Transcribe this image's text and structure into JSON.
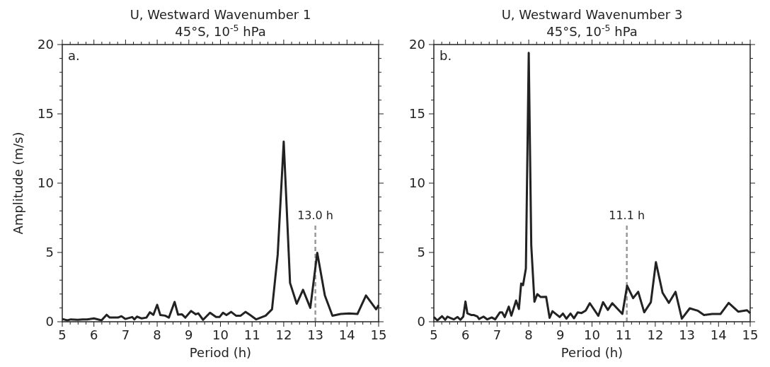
{
  "chart_data": [
    {
      "type": "line",
      "title": "U, Westward Wavenumber 1",
      "subtitle": "45°S, 10$^{-5}$ hPa",
      "xlabel": "Period (h)",
      "ylabel": "Amplitude (m/s)",
      "annotations": [
        "a."
      ],
      "series": [
        {
          "color": "#222222",
          "x": [
            5.0,
            5.16,
            5.27,
            5.49,
            5.64,
            5.79,
            6.0,
            6.24,
            6.4,
            6.5,
            6.76,
            6.87,
            6.99,
            7.21,
            7.28,
            7.36,
            7.51,
            7.66,
            7.77,
            7.88,
            8.0,
            8.1,
            8.25,
            8.37,
            8.55,
            8.66,
            8.78,
            8.89,
            9.07,
            9.22,
            9.3,
            9.45,
            9.67,
            9.86,
            9.97,
            10.08,
            10.19,
            10.34,
            10.49,
            10.64,
            10.79,
            10.94,
            11.13,
            11.43,
            11.63,
            11.81,
            12.0,
            12.2,
            12.41,
            12.61,
            12.84,
            13.06,
            13.3,
            13.54,
            13.8,
            14.07,
            14.33,
            14.6,
            14.92,
            15.0
          ],
          "values": [
            0.2,
            0.1,
            0.17,
            0.14,
            0.17,
            0.17,
            0.24,
            0.1,
            0.5,
            0.3,
            0.3,
            0.4,
            0.2,
            0.34,
            0.17,
            0.37,
            0.24,
            0.3,
            0.68,
            0.5,
            1.22,
            0.48,
            0.44,
            0.3,
            1.43,
            0.51,
            0.54,
            0.3,
            0.78,
            0.54,
            0.61,
            0.14,
            0.65,
            0.34,
            0.34,
            0.65,
            0.48,
            0.71,
            0.44,
            0.44,
            0.71,
            0.48,
            0.17,
            0.44,
            0.9,
            4.85,
            13.0,
            2.8,
            1.3,
            2.3,
            1.0,
            4.98,
            1.9,
            0.43,
            0.56,
            0.6,
            0.56,
            1.9,
            0.9,
            1.2
          ]
        }
      ],
      "xlim": [
        5,
        15
      ],
      "ylim": [
        0,
        20
      ],
      "xticks": [
        5,
        {
          "value": 5.25,
          "label": null
        },
        {
          "value": 5.5,
          "label": null
        },
        {
          "value": 5.75,
          "label": null
        },
        6,
        {
          "value": 6.25,
          "label": null
        },
        {
          "value": 6.5,
          "label": null
        },
        {
          "value": 6.75,
          "label": null
        },
        7,
        {
          "value": 7.25,
          "label": null
        },
        {
          "value": 7.5,
          "label": null
        },
        {
          "value": 7.75,
          "label": null
        },
        8,
        {
          "value": 8.25,
          "label": null
        },
        {
          "value": 8.5,
          "label": null
        },
        {
          "value": 8.75,
          "label": null
        },
        9,
        {
          "value": 9.25,
          "label": null
        },
        {
          "value": 9.5,
          "label": null
        },
        {
          "value": 9.75,
          "label": null
        },
        10,
        {
          "value": 10.25,
          "label": null
        },
        {
          "value": 10.5,
          "label": null
        },
        {
          "value": 10.75,
          "label": null
        },
        11,
        {
          "value": 11.25,
          "label": null
        },
        {
          "value": 11.5,
          "label": null
        },
        {
          "value": 11.75,
          "label": null
        },
        12,
        {
          "value": 12.25,
          "label": null
        },
        {
          "value": 12.5,
          "label": null
        },
        {
          "value": 12.75,
          "label": null
        },
        13,
        {
          "value": 13.25,
          "label": null
        },
        {
          "value": 13.5,
          "label": null
        },
        {
          "value": 13.75,
          "label": null
        },
        14,
        {
          "value": 14.25,
          "label": null
        },
        {
          "value": 14.5,
          "label": null
        },
        {
          "value": 14.75,
          "label": null
        },
        15
      ],
      "yticks": [
        0,
        {
          "value": 1,
          "label": null
        },
        {
          "value": 2,
          "label": null
        },
        {
          "value": 3,
          "label": null
        },
        {
          "value": 4,
          "label": null
        },
        5,
        {
          "value": 6,
          "label": null
        },
        {
          "value": 7,
          "label": null
        },
        {
          "value": 8,
          "label": null
        },
        {
          "value": 9,
          "label": null
        },
        10,
        {
          "value": 11,
          "label": null
        },
        {
          "value": 12,
          "label": null
        },
        {
          "value": 13,
          "label": null
        },
        {
          "value": 14,
          "label": null
        },
        15,
        {
          "value": 16,
          "label": null
        },
        {
          "value": 17,
          "label": null
        },
        {
          "value": 18,
          "label": null
        },
        {
          "value": 19,
          "label": null
        },
        20
      ],
      "ref_lines": [
        {
          "axis": "x",
          "value": 13.0,
          "label": "13.0 h",
          "color": "#999999",
          "line_style": "dashed"
        }
      ],
      "line_style": "solid",
      "marker": "none",
      "grid": false
    },
    {
      "type": "line",
      "title": "U, Westward Wavenumber 3",
      "subtitle": "45°S, 10$^{-5}$ hPa",
      "xlabel": "Period (h)",
      "annotations": [
        "b."
      ],
      "series": [
        {
          "color": "#222222",
          "x": [
            5.0,
            5.11,
            5.26,
            5.36,
            5.43,
            5.52,
            5.63,
            5.75,
            5.84,
            5.93,
            6.0,
            6.06,
            6.19,
            6.27,
            6.38,
            6.43,
            6.57,
            6.69,
            6.83,
            6.94,
            7.09,
            7.16,
            7.24,
            7.37,
            7.45,
            7.6,
            7.69,
            7.76,
            7.82,
            7.91,
            8.0,
            8.08,
            8.18,
            8.27,
            8.38,
            8.55,
            8.66,
            8.75,
            8.98,
            9.08,
            9.19,
            9.32,
            9.43,
            9.55,
            9.67,
            9.8,
            9.93,
            10.2,
            10.35,
            10.5,
            10.64,
            10.96,
            11.11,
            11.3,
            11.46,
            11.65,
            11.86,
            12.02,
            12.23,
            12.43,
            12.64,
            12.84,
            13.09,
            13.34,
            13.54,
            13.8,
            14.06,
            14.32,
            14.62,
            14.9,
            15.0
          ],
          "values": [
            0.34,
            0.1,
            0.4,
            0.14,
            0.37,
            0.27,
            0.17,
            0.34,
            0.14,
            0.37,
            1.46,
            0.61,
            0.48,
            0.48,
            0.37,
            0.2,
            0.37,
            0.17,
            0.31,
            0.17,
            0.68,
            0.68,
            0.34,
            1.09,
            0.44,
            1.53,
            0.92,
            2.76,
            2.64,
            3.84,
            19.4,
            5.5,
            1.44,
            1.99,
            1.78,
            1.8,
            0.28,
            0.76,
            0.34,
            0.59,
            0.22,
            0.59,
            0.25,
            0.68,
            0.63,
            0.8,
            1.34,
            0.43,
            1.41,
            0.85,
            1.34,
            0.56,
            2.6,
            1.7,
            2.16,
            0.68,
            1.41,
            4.3,
            2.09,
            1.36,
            2.16,
            0.22,
            0.97,
            0.8,
            0.49,
            0.56,
            0.56,
            1.36,
            0.73,
            0.83,
            0.62
          ]
        }
      ],
      "xlim": [
        5,
        15
      ],
      "ylim": [
        0,
        20
      ],
      "xticks": [
        5,
        {
          "value": 5.25,
          "label": null
        },
        {
          "value": 5.5,
          "label": null
        },
        {
          "value": 5.75,
          "label": null
        },
        6,
        {
          "value": 6.25,
          "label": null
        },
        {
          "value": 6.5,
          "label": null
        },
        {
          "value": 6.75,
          "label": null
        },
        7,
        {
          "value": 7.25,
          "label": null
        },
        {
          "value": 7.5,
          "label": null
        },
        {
          "value": 7.75,
          "label": null
        },
        8,
        {
          "value": 8.25,
          "label": null
        },
        {
          "value": 8.5,
          "label": null
        },
        {
          "value": 8.75,
          "label": null
        },
        9,
        {
          "value": 9.25,
          "label": null
        },
        {
          "value": 9.5,
          "label": null
        },
        {
          "value": 9.75,
          "label": null
        },
        10,
        {
          "value": 10.25,
          "label": null
        },
        {
          "value": 10.5,
          "label": null
        },
        {
          "value": 10.75,
          "label": null
        },
        11,
        {
          "value": 11.25,
          "label": null
        },
        {
          "value": 11.5,
          "label": null
        },
        {
          "value": 11.75,
          "label": null
        },
        12,
        {
          "value": 12.25,
          "label": null
        },
        {
          "value": 12.5,
          "label": null
        },
        {
          "value": 12.75,
          "label": null
        },
        13,
        {
          "value": 13.25,
          "label": null
        },
        {
          "value": 13.5,
          "label": null
        },
        {
          "value": 13.75,
          "label": null
        },
        14,
        {
          "value": 14.25,
          "label": null
        },
        {
          "value": 14.5,
          "label": null
        },
        {
          "value": 14.75,
          "label": null
        },
        15
      ],
      "yticks": [
        0,
        {
          "value": 1,
          "label": null
        },
        {
          "value": 2,
          "label": null
        },
        {
          "value": 3,
          "label": null
        },
        {
          "value": 4,
          "label": null
        },
        5,
        {
          "value": 6,
          "label": null
        },
        {
          "value": 7,
          "label": null
        },
        {
          "value": 8,
          "label": null
        },
        {
          "value": 9,
          "label": null
        },
        10,
        {
          "value": 11,
          "label": null
        },
        {
          "value": 12,
          "label": null
        },
        {
          "value": 13,
          "label": null
        },
        {
          "value": 14,
          "label": null
        },
        15,
        {
          "value": 16,
          "label": null
        },
        {
          "value": 17,
          "label": null
        },
        {
          "value": 18,
          "label": null
        },
        {
          "value": 19,
          "label": null
        },
        20
      ],
      "ref_lines": [
        {
          "axis": "x",
          "value": 11.1,
          "label": "11.1 h",
          "color": "#999999",
          "line_style": "dashed"
        }
      ],
      "line_style": "solid",
      "marker": "none",
      "grid": false
    }
  ]
}
